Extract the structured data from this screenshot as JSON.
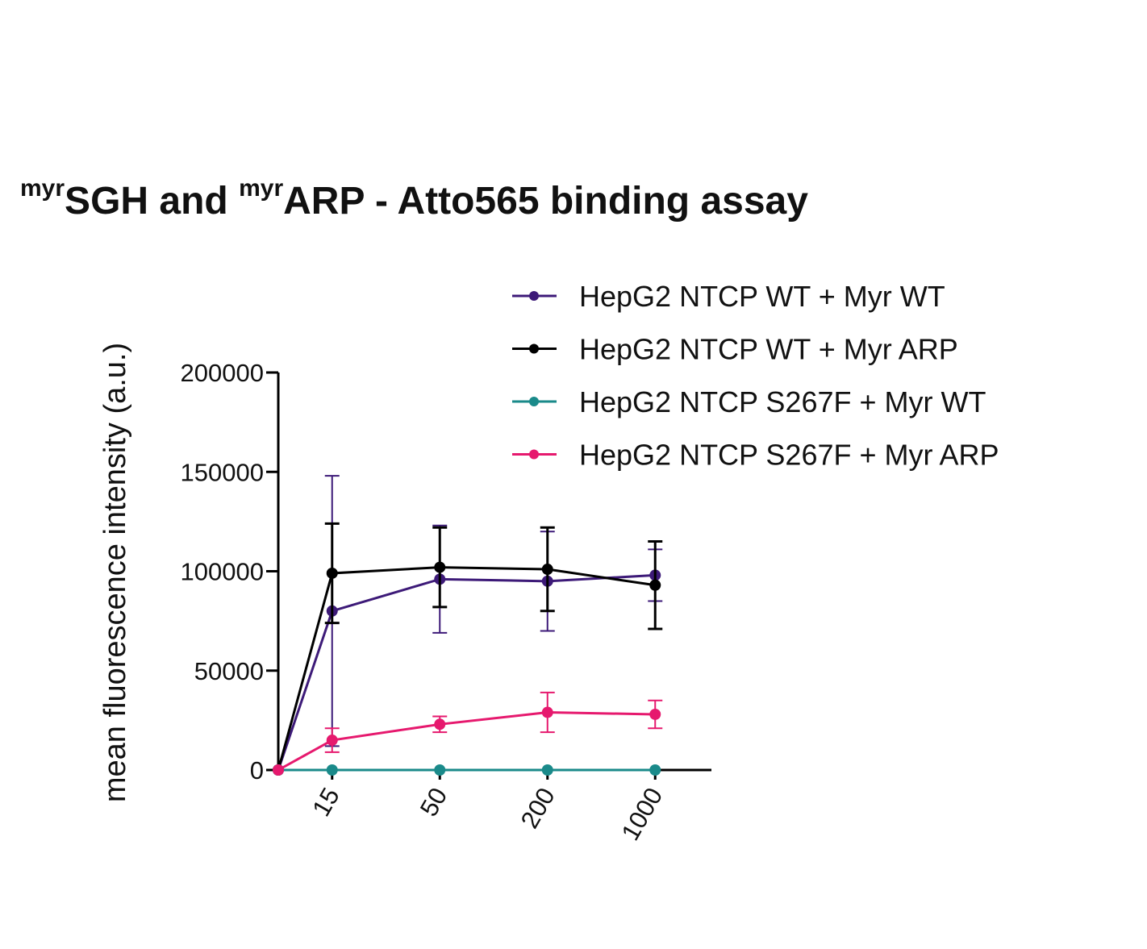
{
  "chart_data": {
    "type": "line",
    "title": [
      {
        "text": "myr",
        "superscript": true
      },
      {
        "text": "SGH and "
      },
      {
        "text": "myr",
        "superscript": true
      },
      {
        "text": "ARP - Atto565 binding assay"
      }
    ],
    "y_label": "mean fluorescence intensity (a.u.)",
    "categories": [
      null,
      "15",
      "50",
      "200",
      "1000"
    ],
    "ylim": [
      0,
      200000
    ],
    "yticks": [
      0,
      50000,
      100000,
      150000,
      200000
    ],
    "legend": "top-right",
    "series": [
      {
        "name": "HepG2 NTCP WT + Myr WT",
        "color": "#3d1a78",
        "values": [
          0,
          80000,
          96000,
          95000,
          98000
        ],
        "errors": [
          null,
          68000,
          27000,
          25000,
          13000
        ]
      },
      {
        "name": "HepG2 NTCP WT + Myr ARP",
        "color": "#000000",
        "values": [
          0,
          99000,
          102000,
          101000,
          93000
        ],
        "errors": [
          null,
          25000,
          20000,
          21000,
          22000
        ]
      },
      {
        "name": "HepG2 NTCP S267F + Myr WT",
        "color": "#1a8a8a",
        "values": [
          0,
          0,
          0,
          0,
          0
        ],
        "errors": [
          null,
          null,
          null,
          null,
          null
        ]
      },
      {
        "name": "HepG2 NTCP S267F + Myr ARP",
        "color": "#e6196e",
        "values": [
          0,
          15000,
          23000,
          29000,
          28000
        ],
        "errors": [
          null,
          6000,
          4000,
          10000,
          7000
        ]
      }
    ]
  }
}
